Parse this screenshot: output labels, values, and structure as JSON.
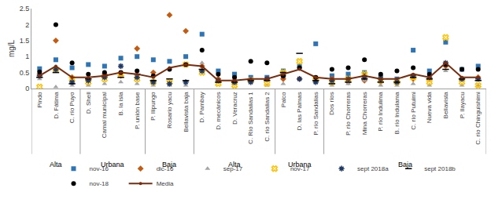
{
  "chart_data": {
    "type": "scatter",
    "y_label": "mg/L",
    "categories": [
      "Pindo",
      "D. Fátima",
      "C. río Puyo",
      "D. Shell",
      "Camal municipal",
      "B. la isla",
      "P. unión base",
      "P. Ilipungo",
      "Rosario yacu",
      "Bellavista baja",
      "D. Pambay",
      "D. mecánicos",
      "D. Veracruz",
      "C. Río Sandalias 1",
      "C. río Sandalias 2",
      "Palco",
      "D. las Palmas",
      "P. río Sandalias",
      "Dos ríos",
      "P. río Chorreras",
      "Mina Chorreras",
      "P. río Indulima",
      "B. río Indulama",
      "C. río Putuimi",
      "Nueva vida",
      "Bellavista",
      "P. Ilayacu",
      "C. río Chinguishimi"
    ],
    "groups": [
      {
        "label": "Alta",
        "count": 3
      },
      {
        "label": "Urbana",
        "count": 4
      },
      {
        "label": "Baja",
        "count": 3
      },
      {
        "label": "Alta",
        "count": 5
      },
      {
        "label": "Urbana",
        "count": 3
      },
      {
        "label": "Baja",
        "count": 10
      }
    ],
    "series": [
      {
        "name": "nov-16",
        "color": "#2e75b6",
        "marker": "square",
        "values": [
          0.62,
          0.9,
          0.65,
          0.75,
          0.7,
          0.95,
          1.0,
          0.9,
          0.85,
          1.0,
          1.7,
          0.55,
          0.45,
          0.35,
          0.35,
          0.55,
          0.7,
          1.4,
          0.4,
          0.45,
          0.5,
          0.35,
          0.3,
          1.2,
          0.55,
          1.45,
          0.6,
          0.7
        ]
      },
      {
        "name": "dic-16",
        "color": "#c55a11",
        "marker": "diamond",
        "values": [
          0.45,
          1.5,
          0.35,
          0.3,
          0.45,
          0.4,
          1.25,
          0.5,
          2.3,
          1.8,
          0.7,
          0.3,
          0.25,
          0.25,
          0.3,
          0.3,
          0.3,
          0.3,
          0.3,
          0.2,
          0.25,
          0.2,
          0.2,
          0.3,
          0.3,
          0.7,
          0.3,
          0.35
        ]
      },
      {
        "name": "sep-17",
        "color": "#a5a5a5",
        "marker": "triangle-up",
        "values": [
          0.3,
          0.05,
          0.1,
          0.1,
          0.15,
          0.2,
          0.15,
          0.1,
          0.1,
          0.1,
          0.8,
          0.2,
          0.15,
          0.3,
          0.1,
          0.15,
          0.6,
          0.2,
          0.1,
          0.15,
          0.25,
          0.1,
          0.1,
          0.15,
          0.1,
          0.55,
          0.1,
          0.1
        ]
      },
      {
        "name": "nov-17",
        "color": "#ffc000",
        "marker": "x",
        "values": [
          0.05,
          0.6,
          0.3,
          0.2,
          0.3,
          0.45,
          0.3,
          0.2,
          0.2,
          0.75,
          0.5,
          0.15,
          0.1,
          0.25,
          0.15,
          0.5,
          0.85,
          0.3,
          0.2,
          0.3,
          0.45,
          0.25,
          0.2,
          0.35,
          0.2,
          1.6,
          0.2,
          0.1
        ]
      },
      {
        "name": "sept 2018a",
        "color": "#203864",
        "marker": "asterisk",
        "values": [
          0.4,
          0.6,
          0.2,
          0.25,
          0.35,
          0.7,
          0.35,
          0.2,
          0.15,
          0.2,
          0.55,
          0.25,
          0.2,
          0.2,
          0.3,
          0.4,
          0.3,
          0.2,
          0.25,
          0.3,
          0.35,
          0.3,
          0.2,
          0.4,
          0.35,
          0.8,
          0.3,
          0.3
        ]
      },
      {
        "name": "sept 2018b",
        "color": "#000000",
        "marker": "line-ew",
        "values": [
          0.35,
          0.5,
          0.15,
          0.3,
          0.4,
          0.35,
          0.45,
          0.25,
          0.3,
          0.25,
          0.6,
          0.2,
          0.2,
          0.25,
          0.25,
          0.5,
          1.1,
          0.25,
          0.15,
          0.2,
          0.3,
          0.2,
          0.2,
          0.35,
          0.3,
          0.6,
          0.3,
          0.25
        ]
      },
      {
        "name": "nov-18",
        "color": "#000000",
        "marker": "circle",
        "values": [
          0.52,
          2.0,
          0.8,
          0.45,
          0.5,
          0.5,
          0.55,
          0.4,
          0.6,
          0.75,
          1.2,
          0.45,
          0.35,
          0.85,
          0.8,
          0.4,
          0.65,
          0.35,
          0.6,
          0.65,
          0.9,
          0.45,
          0.55,
          0.65,
          0.45,
          0.75,
          0.6,
          0.6
        ]
      },
      {
        "name": "Media",
        "color": "#7b2c0c",
        "type": "line",
        "marker": "circle",
        "values": [
          0.4,
          0.7,
          0.35,
          0.35,
          0.4,
          0.5,
          0.45,
          0.35,
          0.65,
          0.75,
          0.7,
          0.25,
          0.25,
          0.3,
          0.3,
          0.45,
          0.6,
          0.35,
          0.3,
          0.3,
          0.4,
          0.3,
          0.3,
          0.45,
          0.35,
          0.8,
          0.35,
          0.35
        ]
      }
    ],
    "ylim": [
      0,
      2.5
    ],
    "yticks": [
      0,
      0.5,
      1,
      1.5,
      2,
      2.5
    ],
    "grid": false,
    "legend": "bottom"
  }
}
